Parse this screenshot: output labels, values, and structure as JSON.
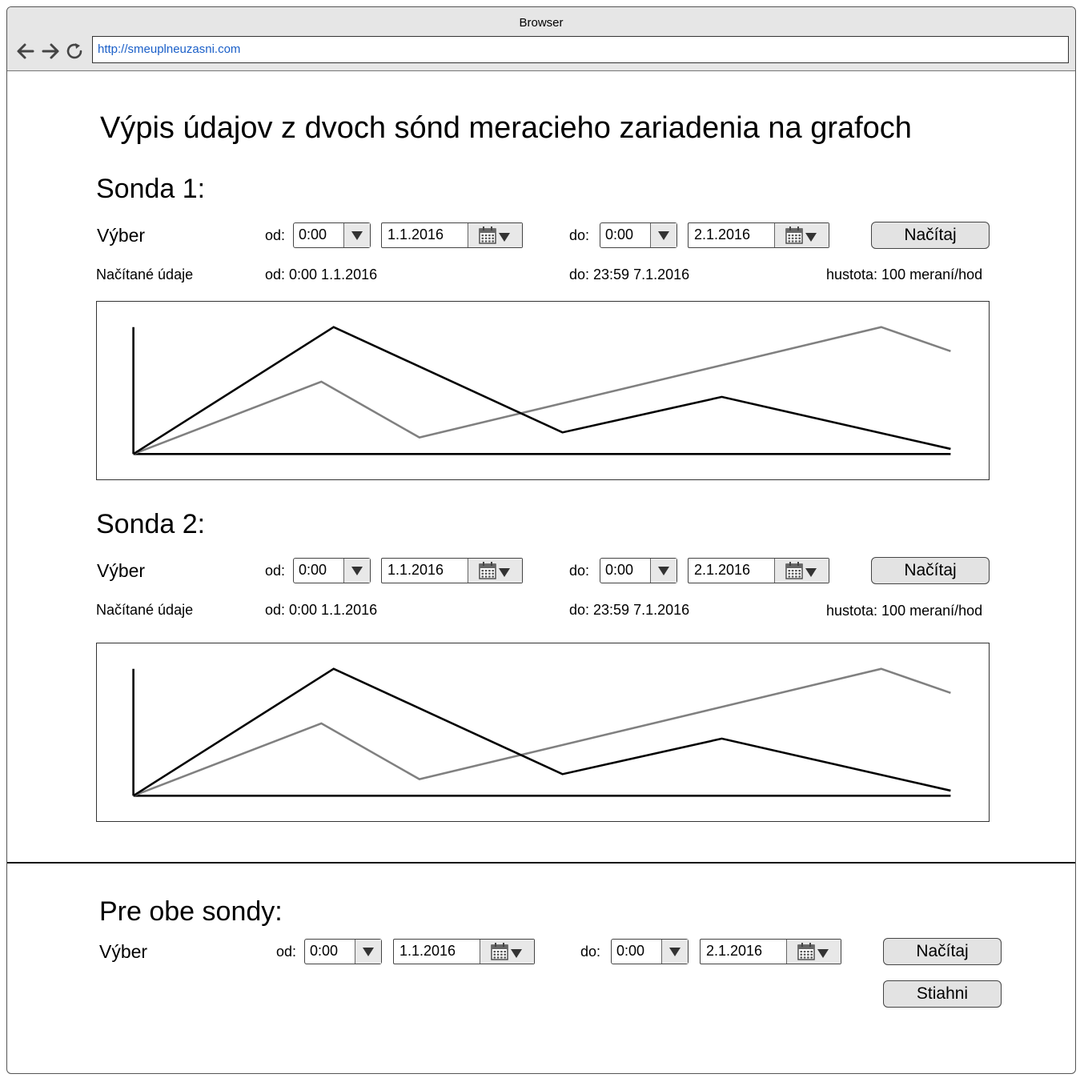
{
  "browser": {
    "title": "Browser",
    "url": "http://smeuplneuzasni.com"
  },
  "page": {
    "title": "Výpis údajov z dvoch sónd meracieho zariadenia na grafoch"
  },
  "probes": [
    {
      "heading": "Sonda 1:",
      "selection_label": "Výber",
      "from_label": "od:",
      "from_time": "0:00",
      "from_date": "1.1.2016",
      "to_label": "do:",
      "to_time": "0:00",
      "to_date": "2.1.2016",
      "load_button": "Načítaj",
      "loaded_label": "Načítané údaje",
      "loaded_from": "od: 0:00 1.1.2016",
      "loaded_to": "do: 23:59 7.1.2016",
      "density": "hustota: 100 meraní/hod"
    },
    {
      "heading": "Sonda 2:",
      "selection_label": "Výber",
      "from_label": "od:",
      "from_time": "0:00",
      "from_date": "1.1.2016",
      "to_label": "do:",
      "to_time": "0:00",
      "to_date": "2.1.2016",
      "load_button": "Načítaj",
      "loaded_label": "Načítané údaje",
      "loaded_from": "od: 0:00 1.1.2016",
      "loaded_to": "do: 23:59 7.1.2016",
      "density": "hustota: 100 meraní/hod"
    }
  ],
  "both": {
    "heading": "Pre obe sondy:",
    "selection_label": "Výber",
    "from_label": "od:",
    "from_time": "0:00",
    "from_date": "1.1.2016",
    "to_label": "do:",
    "to_time": "0:00",
    "to_date": "2.1.2016",
    "load_button": "Načítaj",
    "download_button": "Stiahni"
  },
  "icons": [
    "back-arrow-icon",
    "forward-arrow-icon",
    "reload-icon",
    "dropdown-arrow-icon",
    "calendar-icon"
  ],
  "colors": {
    "series_dark": "#000000",
    "series_light": "#808080",
    "url": "#1a5fc8"
  },
  "chart_data": [
    {
      "type": "line",
      "x": [
        0,
        0.24,
        0.36,
        0.52,
        0.72,
        0.91,
        1.0
      ],
      "series": [
        {
          "values": [
            0,
            1.0,
            null,
            0.17,
            0.45,
            null,
            0.04
          ],
          "color": "#000000"
        },
        {
          "values": [
            0,
            0.57,
            0.13,
            null,
            null,
            1.0,
            0.81
          ],
          "color": "#808080"
        }
      ],
      "series_points": [
        [
          [
            0,
            0
          ],
          [
            0.245,
            1.0
          ],
          [
            0.525,
            0.17
          ],
          [
            0.72,
            0.45
          ],
          [
            1.0,
            0.04
          ]
        ],
        [
          [
            0,
            0
          ],
          [
            0.23,
            0.57
          ],
          [
            0.35,
            0.13
          ],
          [
            0.915,
            1.0
          ],
          [
            1.0,
            0.81
          ]
        ]
      ],
      "grid": false
    },
    {
      "type": "line",
      "series_points": [
        [
          [
            0,
            0
          ],
          [
            0.245,
            1.0
          ],
          [
            0.525,
            0.17
          ],
          [
            0.72,
            0.45
          ],
          [
            1.0,
            0.04
          ]
        ],
        [
          [
            0,
            0
          ],
          [
            0.23,
            0.57
          ],
          [
            0.35,
            0.13
          ],
          [
            0.915,
            1.0
          ],
          [
            1.0,
            0.81
          ]
        ]
      ],
      "grid": false
    }
  ]
}
